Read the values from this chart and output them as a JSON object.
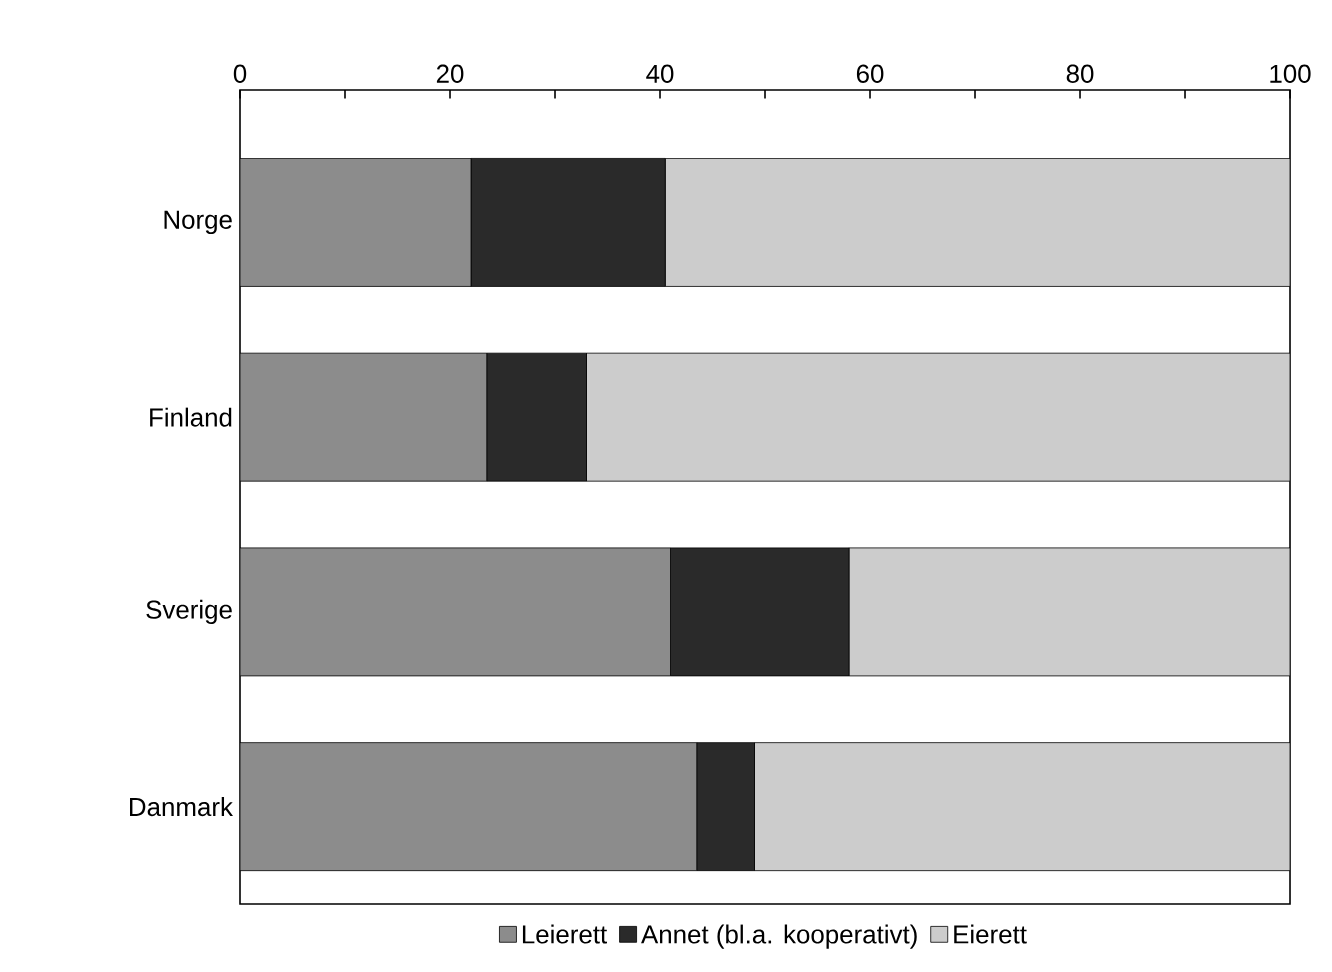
{
  "chart_data": {
    "type": "bar",
    "orientation": "horizontal",
    "stacked": true,
    "categories": [
      "Norge",
      "Finland",
      "Sverige",
      "Danmark"
    ],
    "series": [
      {
        "name": "Leierett",
        "color": "#8c8c8c",
        "values": [
          22,
          23.5,
          41,
          43.5
        ]
      },
      {
        "name": "Annet (bl.a. kooperativt)",
        "color": "#2a2a2a",
        "values": [
          18.5,
          9.5,
          17,
          5.5
        ]
      },
      {
        "name": "Eierett",
        "color": "#cccccc",
        "values": [
          59.5,
          67,
          42,
          51
        ]
      }
    ],
    "xlim": [
      0,
      100
    ],
    "xticks": [
      0,
      {
        "value": 10,
        "label": null
      },
      20,
      {
        "value": 30,
        "label": null
      },
      40,
      {
        "value": 50,
        "label": null
      },
      60,
      {
        "value": 70,
        "label": null
      },
      80,
      {
        "value": 90,
        "label": null
      },
      100
    ],
    "legend": "bottom",
    "grid": false
  }
}
